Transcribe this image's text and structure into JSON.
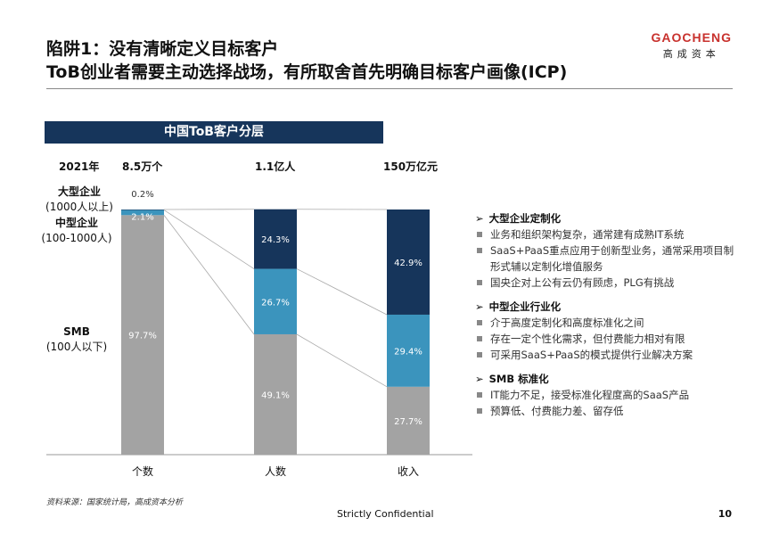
{
  "header": {
    "title_line1": "陷阱1：没有清晰定义目标客户",
    "title_line2": "ToB创业者需要主动选择战场，有所取舍首先明确目标客户画像(ICP)"
  },
  "logo": {
    "en": "GAOCHENG",
    "cn": "高成资本"
  },
  "chart_data": {
    "type": "bar",
    "stacked": true,
    "title": "中国ToB客户分层",
    "header_label": "2021年",
    "totals": [
      "8.5万个",
      "1.1亿人",
      "150万亿元"
    ],
    "categories": [
      "个数",
      "人数",
      "收入"
    ],
    "series": [
      {
        "name": "SMB",
        "values": [
          97.7,
          49.1,
          27.7
        ],
        "labels": [
          "97.7%",
          "49.1%",
          "27.7%"
        ],
        "color": "#a3a3a3"
      },
      {
        "name": "中型企业",
        "values": [
          2.1,
          26.7,
          29.4
        ],
        "labels": [
          "2.1%",
          "26.7%",
          "29.4%"
        ],
        "color": "#3b94bd"
      },
      {
        "name": "大型企业",
        "values": [
          0.2,
          24.3,
          42.9
        ],
        "labels": [
          "0.2%",
          "24.3%",
          "42.9%"
        ],
        "color": "#16355b"
      }
    ],
    "ylim": [
      0,
      100
    ],
    "segment_labels": [
      {
        "name": "大型企业",
        "desc": "(1000人以上)"
      },
      {
        "name": "中型企业",
        "desc": "(100-1000人)"
      },
      {
        "name": "SMB",
        "desc": "(100人以下)"
      }
    ]
  },
  "right_panel": [
    {
      "heading": "大型企业定制化",
      "items": [
        "业务和组织架构复杂，通常建有成熟IT系统",
        "SaaS+PaaS重点应用于创新型业务，通常采用项目制形式辅以定制化增值服务",
        "国央企对上公有云仍有顾虑，PLG有挑战"
      ]
    },
    {
      "heading": "中型企业行业化",
      "items": [
        "介于高度定制化和高度标准化之间",
        "存在一定个性化需求，但付费能力相对有限",
        "可采用SaaS+PaaS的模式提供行业解决方案"
      ]
    },
    {
      "heading": "SMB 标准化",
      "items": [
        "IT能力不足，接受标准化程度高的SaaS产品",
        "预算低、付费能力差、留存低"
      ]
    }
  ],
  "footer": {
    "source": "资料来源：国家统计局，高成资本分析",
    "confidential": "Strictly Confidential",
    "page": "10"
  }
}
